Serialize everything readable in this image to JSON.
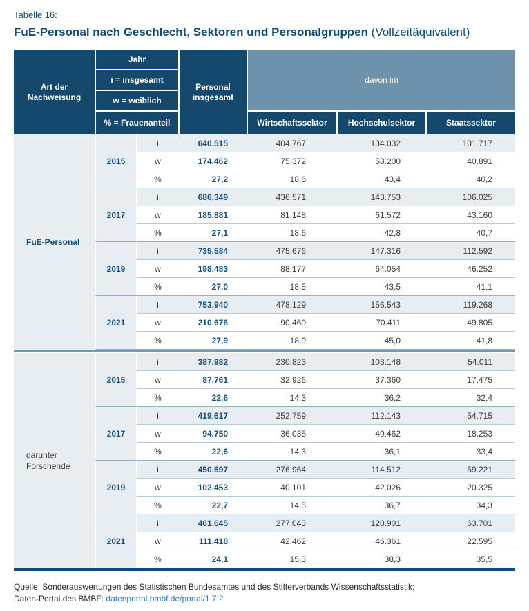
{
  "page": {
    "table_label": "Tabelle 16:",
    "title_bold": "FuE-Personal nach Geschlecht, Sektoren und Personalgruppen",
    "title_normal": " (Vollzeitäquivalent)"
  },
  "colors": {
    "header_navy": "#14486c",
    "davon_band_blue": "#6e92ab",
    "row_stripe": "#e8edf2",
    "value_navy": "#15507c",
    "data_gray": "#3b3b3a",
    "section_divider_blue": "#6f9ab6",
    "bottom_bar_navy": "#15497a",
    "link_blue": "#2e7cb5"
  },
  "header": {
    "col_art": "Art der Nachweisung",
    "legend": [
      "Jahr",
      "i = insgesamt",
      "w = weiblich",
      "% = Frauenanteil"
    ],
    "col_personal": "Personal insgesamt",
    "davon_im": "davon im",
    "sectors": [
      "Wirtschaftssektor",
      "Hochschulsektor",
      "Staatssektor"
    ]
  },
  "sections": [
    {
      "label": "FuE-Personal",
      "groups": [
        {
          "year": "2015",
          "rows": [
            [
              "i",
              "640.515",
              "404.767",
              "134.032",
              "101.717"
            ],
            [
              "w",
              "174.462",
              "75.372",
              "58.200",
              "40.891"
            ],
            [
              "%",
              "27,2",
              "18,6",
              "43,4",
              "40,2"
            ]
          ]
        },
        {
          "year": "2017",
          "rows": [
            [
              "i",
              "686.349",
              "436.571",
              "143.753",
              "106.025"
            ],
            [
              "w",
              "185.881",
              "81.148",
              "61.572",
              "43.160"
            ],
            [
              "%",
              "27,1",
              "18,6",
              "42,8",
              "40,7"
            ]
          ]
        },
        {
          "year": "2019",
          "rows": [
            [
              "i",
              "735.584",
              "475.676",
              "147.316",
              "112.592"
            ],
            [
              "w",
              "198.483",
              "88.177",
              "64.054",
              "46.252"
            ],
            [
              "%",
              "27,0",
              "18,5",
              "43,5",
              "41,1"
            ]
          ]
        },
        {
          "year": "2021",
          "rows": [
            [
              "i",
              "753.940",
              "478.129",
              "156.543",
              "119.268"
            ],
            [
              "w",
              "210.676",
              "90.460",
              "70.411",
              "49.805"
            ],
            [
              "%",
              "27,9",
              "18,9",
              "45,0",
              "41,8"
            ]
          ]
        }
      ]
    },
    {
      "label": "darunter Forschende",
      "groups": [
        {
          "year": "2015",
          "rows": [
            [
              "i",
              "387.982",
              "230.823",
              "103.148",
              "54.011"
            ],
            [
              "w",
              "87.761",
              "32.926",
              "37.360",
              "17.475"
            ],
            [
              "%",
              "22,6",
              "14,3",
              "36,2",
              "32,4"
            ]
          ]
        },
        {
          "year": "2017",
          "rows": [
            [
              "i",
              "419.617",
              "252.759",
              "112.143",
              "54.715"
            ],
            [
              "w",
              "94.750",
              "36.035",
              "40.462",
              "18.253"
            ],
            [
              "%",
              "22,6",
              "14,3",
              "36,1",
              "33,4"
            ]
          ]
        },
        {
          "year": "2019",
          "rows": [
            [
              "i",
              "450.697",
              "276.964",
              "114.512",
              "59.221"
            ],
            [
              "w",
              "102.453",
              "40.101",
              "42.026",
              "20.325"
            ],
            [
              "%",
              "22,7",
              "14,5",
              "36,7",
              "34,3"
            ]
          ]
        },
        {
          "year": "2021",
          "rows": [
            [
              "i",
              "461.645",
              "277.043",
              "120.901",
              "63.701"
            ],
            [
              "w",
              "111.418",
              "42.462",
              "46.361",
              "22.595"
            ],
            [
              "%",
              "24,1",
              "15,3",
              "38,3",
              "35,5"
            ]
          ]
        }
      ]
    }
  ],
  "footer": {
    "line1": "Quelle: Sonderauswertungen des Statistischen Bundesamtes und des Stifterverbands Wissenschaftsstatistik;",
    "line2_prefix": "Daten-Portal des BMBF: ",
    "link": "datenportal.bmbf.de/portal/1.7.2"
  }
}
